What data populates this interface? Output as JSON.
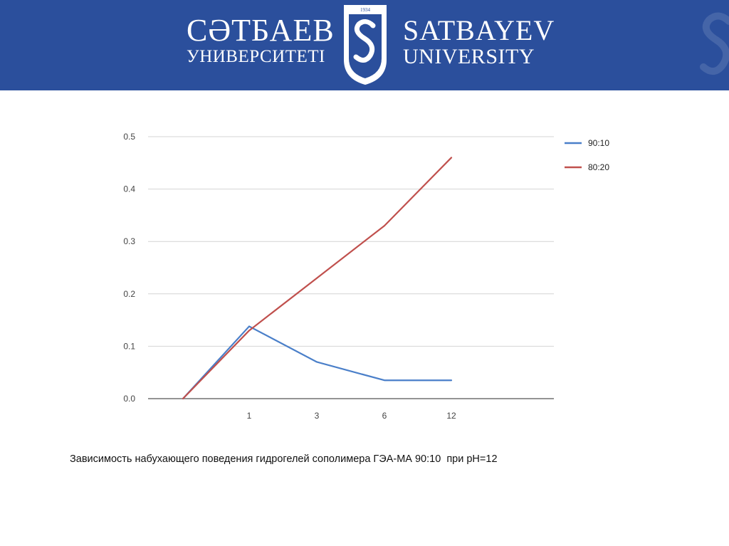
{
  "header": {
    "left_line1": "СӘТБАЕВ",
    "left_line2": "УНИВЕРСИТЕТІ",
    "right_line1": "SATBAYEV",
    "right_line2": "UNIVERSITY",
    "emblem_year": "1934",
    "background_color": "#2b4f9c"
  },
  "caption": "Зависимость набухающего поведения гидрогелей сополимера ГЭА-МА 90:10  при рН=12",
  "chart_data": {
    "type": "line",
    "x_ticks": [
      "1",
      "3",
      "6",
      "12"
    ],
    "y_ticks": [
      "0.0",
      "0.1",
      "0.2",
      "0.3",
      "0.4",
      "0.5"
    ],
    "ylim": [
      0,
      0.5
    ],
    "grid": true,
    "legend_position": "right",
    "series": [
      {
        "name": "90:10",
        "color": "#4a7fc9",
        "points": [
          {
            "x": "",
            "y": 0.0
          },
          {
            "x": "1",
            "y": 0.138
          },
          {
            "x": "3",
            "y": 0.07
          },
          {
            "x": "6",
            "y": 0.035
          },
          {
            "x": "12",
            "y": 0.035
          }
        ]
      },
      {
        "name": "80:20",
        "color": "#c0504d",
        "points": [
          {
            "x": "",
            "y": 0.0
          },
          {
            "x": "1",
            "y": 0.13
          },
          {
            "x": "3",
            "y": 0.23
          },
          {
            "x": "6",
            "y": 0.33
          },
          {
            "x": "12",
            "y": 0.46
          }
        ]
      }
    ]
  }
}
